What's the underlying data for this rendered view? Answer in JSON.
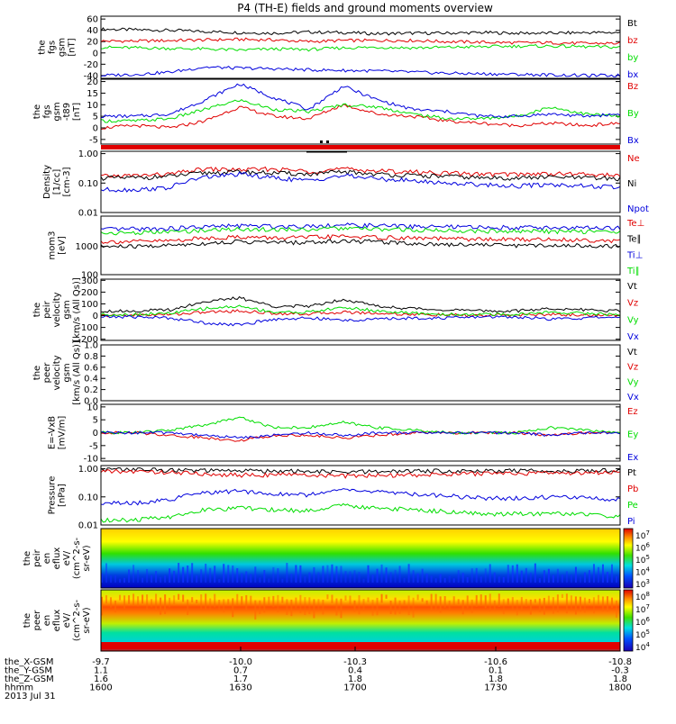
{
  "title": "P4 (TH-E) fields and ground moments overview",
  "colors": {
    "black": "#000000",
    "red": "#e00000",
    "green": "#00dd00",
    "blue": "#0000dd"
  },
  "footer": {
    "rows": [
      {
        "label": "the_X-GSM",
        "values": [
          "-9.7",
          "-10.0",
          "-10.3",
          "-10.6",
          "-10.8"
        ]
      },
      {
        "label": "the_Y-GSM",
        "values": [
          "1.1",
          "0.7",
          "0.4",
          "0.1",
          "-0.3"
        ]
      },
      {
        "label": "the_Z-GSM",
        "values": [
          "1.6",
          "1.7",
          "1.8",
          "1.8",
          "1.8"
        ]
      },
      {
        "label": "hhmm",
        "values": [
          "1600",
          "1630",
          "1700",
          "1730",
          "1800"
        ]
      }
    ],
    "date": "2013 Jul 31"
  },
  "chart_data": [
    {
      "type": "line",
      "ylabel": [
        "the",
        "fgs",
        "gsm",
        "[nT]"
      ],
      "yticks": [
        "60",
        "40",
        "20",
        "0",
        "-20",
        "-40"
      ],
      "ylim": [
        -45,
        65
      ],
      "series": [
        {
          "name": "Bt",
          "color": "#000000",
          "values": [
            42,
            41,
            40,
            38,
            36,
            35,
            37,
            36,
            34,
            35,
            35,
            36,
            35,
            35,
            36,
            36
          ]
        },
        {
          "name": "bz",
          "color": "#e00000",
          "values": [
            21,
            21,
            22,
            23,
            24,
            23,
            20,
            22,
            22,
            22,
            20,
            19,
            18,
            18,
            17,
            17
          ]
        },
        {
          "name": "by",
          "color": "#00dd00",
          "values": [
            10,
            9,
            8,
            7,
            5,
            7,
            6,
            9,
            10,
            9,
            10,
            11,
            12,
            12,
            11,
            10
          ]
        },
        {
          "name": "bx",
          "color": "#0000dd",
          "values": [
            -40,
            -38,
            -34,
            -25,
            -27,
            -28,
            -30,
            -31,
            -32,
            -34,
            -36,
            -37,
            -38,
            -39,
            -40,
            -40
          ]
        }
      ]
    },
    {
      "type": "line",
      "ylabel": [
        "the",
        "fgs",
        "gsm",
        "-t89",
        "[nT]"
      ],
      "yticks": [
        "20",
        "15",
        "10",
        "5",
        "0",
        "-5"
      ],
      "ylim": [
        -7,
        21
      ],
      "series": [
        {
          "name": "Bz",
          "color": "#e00000",
          "values": [
            0,
            1,
            0,
            3,
            9,
            5,
            4,
            10,
            6,
            5,
            3,
            2,
            1,
            2,
            1,
            2
          ]
        },
        {
          "name": "By",
          "color": "#00dd00",
          "values": [
            3,
            3,
            4,
            8,
            12,
            8,
            7,
            10,
            9,
            6,
            4,
            4,
            5,
            9,
            6,
            5
          ]
        },
        {
          "name": "Bx",
          "color": "#0000dd",
          "values": [
            5,
            5,
            6,
            12,
            19,
            13,
            8,
            18,
            12,
            8,
            7,
            5,
            5,
            6,
            5,
            6
          ]
        }
      ]
    },
    {
      "type": "line",
      "ylabel": [
        "Density",
        "[1/cc]",
        "[cm-3]"
      ],
      "yticks": [
        "1.00",
        "0.10",
        "0.01"
      ],
      "yscale": "log",
      "ylim": [
        0.01,
        1.2
      ],
      "series": [
        {
          "name": "Ne",
          "color": "#e00000",
          "values": [
            0.17,
            0.18,
            0.2,
            0.3,
            0.28,
            0.3,
            0.25,
            0.3,
            0.26,
            0.24,
            0.22,
            0.2,
            0.2,
            0.21,
            0.2,
            0.18
          ]
        },
        {
          "name": "Ni",
          "color": "#000000",
          "values": [
            0.15,
            0.15,
            0.17,
            0.22,
            0.24,
            0.22,
            0.2,
            0.24,
            0.2,
            0.18,
            0.17,
            0.15,
            0.15,
            0.16,
            0.15,
            0.14
          ]
        },
        {
          "name": "Npot",
          "color": "#0000dd",
          "values": [
            0.06,
            0.06,
            0.07,
            0.16,
            0.2,
            0.15,
            0.12,
            0.18,
            0.14,
            0.12,
            0.1,
            0.09,
            0.08,
            0.09,
            0.08,
            0.07
          ]
        }
      ]
    },
    {
      "type": "line",
      "ylabel": [
        "mom3",
        "[eV]"
      ],
      "yticks": [
        "1000",
        "100"
      ],
      "yscale": "log",
      "ylim": [
        100,
        12000
      ],
      "series": [
        {
          "name": "Te⊥",
          "color": "#e00000",
          "values": [
            1500,
            1500,
            1600,
            2000,
            2200,
            2000,
            2100,
            2300,
            2100,
            2000,
            1900,
            1800,
            1800,
            1800,
            1700,
            1600
          ]
        },
        {
          "name": "Te∥",
          "color": "#000000",
          "values": [
            1000,
            1000,
            1100,
            1300,
            1500,
            1400,
            1400,
            1600,
            1500,
            1300,
            1200,
            1200,
            1100,
            1100,
            1100,
            1000
          ]
        },
        {
          "name": "Ti⊥",
          "color": "#0000dd",
          "values": [
            4000,
            4200,
            4400,
            5000,
            5500,
            5200,
            5400,
            5800,
            5500,
            5200,
            5000,
            4800,
            4800,
            4700,
            4600,
            4500
          ]
        },
        {
          "name": "Ti∥",
          "color": "#00dd00",
          "values": [
            3000,
            3100,
            3300,
            3800,
            4200,
            4000,
            4100,
            4400,
            4100,
            3900,
            3700,
            3600,
            3500,
            3500,
            3400,
            3300
          ]
        }
      ]
    },
    {
      "type": "line",
      "ylabel": [
        "the",
        "peir",
        "velocity",
        "gsm",
        "[km/s (All Qs)]"
      ],
      "yticks": [
        "300",
        "200",
        "100",
        "0",
        "-100",
        "-200"
      ],
      "ylim": [
        -210,
        310
      ],
      "series": [
        {
          "name": "Vt",
          "color": "#000000",
          "values": [
            40,
            40,
            50,
            120,
            150,
            80,
            80,
            140,
            80,
            60,
            50,
            40,
            40,
            60,
            50,
            40
          ]
        },
        {
          "name": "Vz",
          "color": "#e00000",
          "values": [
            0,
            5,
            10,
            30,
            40,
            20,
            15,
            30,
            20,
            10,
            5,
            0,
            5,
            10,
            5,
            0
          ]
        },
        {
          "name": "Vy",
          "color": "#00dd00",
          "values": [
            10,
            10,
            20,
            60,
            80,
            30,
            30,
            70,
            40,
            20,
            10,
            10,
            10,
            30,
            20,
            10
          ]
        },
        {
          "name": "Vx",
          "color": "#0000dd",
          "values": [
            -10,
            -10,
            -20,
            -60,
            -80,
            -30,
            -20,
            -40,
            -30,
            -20,
            -20,
            -10,
            -10,
            -30,
            -20,
            -10
          ]
        }
      ]
    },
    {
      "type": "line",
      "ylabel": [
        "the",
        "peer",
        "velocity",
        "gsm",
        "[km/s (All Qs)]"
      ],
      "yticks": [
        "1.0",
        "0.8",
        "0.6",
        "0.4",
        "0.2",
        "0.0"
      ],
      "ylim": [
        0,
        1
      ],
      "series": [
        {
          "name": "Vt",
          "color": "#000000",
          "values": []
        },
        {
          "name": "Vz",
          "color": "#e00000",
          "values": []
        },
        {
          "name": "Vy",
          "color": "#00dd00",
          "values": []
        },
        {
          "name": "Vx",
          "color": "#0000dd",
          "values": []
        }
      ]
    },
    {
      "type": "line",
      "ylabel": [
        "E=-VxB",
        "[mV/m]"
      ],
      "yticks": [
        "10",
        "5",
        "0",
        "-5",
        "-10"
      ],
      "ylim": [
        -11,
        11
      ],
      "series": [
        {
          "name": "Ez",
          "color": "#e00000",
          "values": [
            0,
            0,
            -1,
            -2,
            -3,
            -1,
            -1,
            -2,
            -1,
            0,
            0,
            0,
            0,
            -1,
            0,
            0
          ]
        },
        {
          "name": "Ey",
          "color": "#00dd00",
          "values": [
            0,
            0,
            1,
            3,
            6,
            2,
            2,
            4,
            2,
            1,
            0,
            0,
            0,
            2,
            1,
            0
          ]
        },
        {
          "name": "Ex",
          "color": "#0000dd",
          "values": [
            0,
            0,
            0,
            -1,
            -2,
            -1,
            0,
            -1,
            0,
            0,
            0,
            0,
            0,
            -1,
            0,
            0
          ]
        }
      ]
    },
    {
      "type": "line",
      "ylabel": [
        "Pressure",
        "[nPa]"
      ],
      "yticks": [
        "1.00",
        "0.10",
        "0.01"
      ],
      "yscale": "log",
      "ylim": [
        0.01,
        1.3
      ],
      "series": [
        {
          "name": "Pt",
          "color": "#000000",
          "values": [
            0.95,
            0.95,
            0.9,
            0.85,
            0.85,
            0.85,
            0.8,
            0.75,
            0.8,
            0.82,
            0.85,
            0.85,
            0.85,
            0.85,
            0.85,
            0.88
          ]
        },
        {
          "name": "Pb",
          "color": "#e00000",
          "values": [
            0.8,
            0.8,
            0.75,
            0.65,
            0.6,
            0.62,
            0.6,
            0.55,
            0.58,
            0.6,
            0.65,
            0.68,
            0.7,
            0.7,
            0.72,
            0.75
          ]
        },
        {
          "name": "Pe",
          "color": "#00dd00",
          "values": [
            0.015,
            0.015,
            0.02,
            0.035,
            0.04,
            0.035,
            0.032,
            0.05,
            0.04,
            0.035,
            0.03,
            0.025,
            0.025,
            0.026,
            0.024,
            0.02
          ]
        },
        {
          "name": "Pi",
          "color": "#0000dd",
          "values": [
            0.06,
            0.06,
            0.08,
            0.14,
            0.16,
            0.13,
            0.12,
            0.18,
            0.15,
            0.13,
            0.11,
            0.09,
            0.09,
            0.1,
            0.09,
            0.08
          ]
        }
      ]
    },
    {
      "type": "heatmap",
      "ylabel": [
        "the",
        "peir",
        "en",
        "eflux",
        "eV/",
        "(cm^2-s-",
        "sr-eV)"
      ],
      "yticks": [
        "10000",
        "1000",
        "100",
        "10"
      ],
      "colorbar_ticks": [
        "10^7",
        "10^6",
        "10^5",
        "10^4",
        "10^3"
      ]
    },
    {
      "type": "heatmap",
      "ylabel": [
        "the",
        "peer",
        "en",
        "eflux",
        "eV/",
        "(cm^2-s-",
        "sr-eV)"
      ],
      "yticks": [
        "10000",
        "1000",
        "100",
        "10"
      ],
      "colorbar_ticks": [
        "10^8",
        "10^7",
        "10^6",
        "10^5",
        "10^4"
      ]
    }
  ]
}
